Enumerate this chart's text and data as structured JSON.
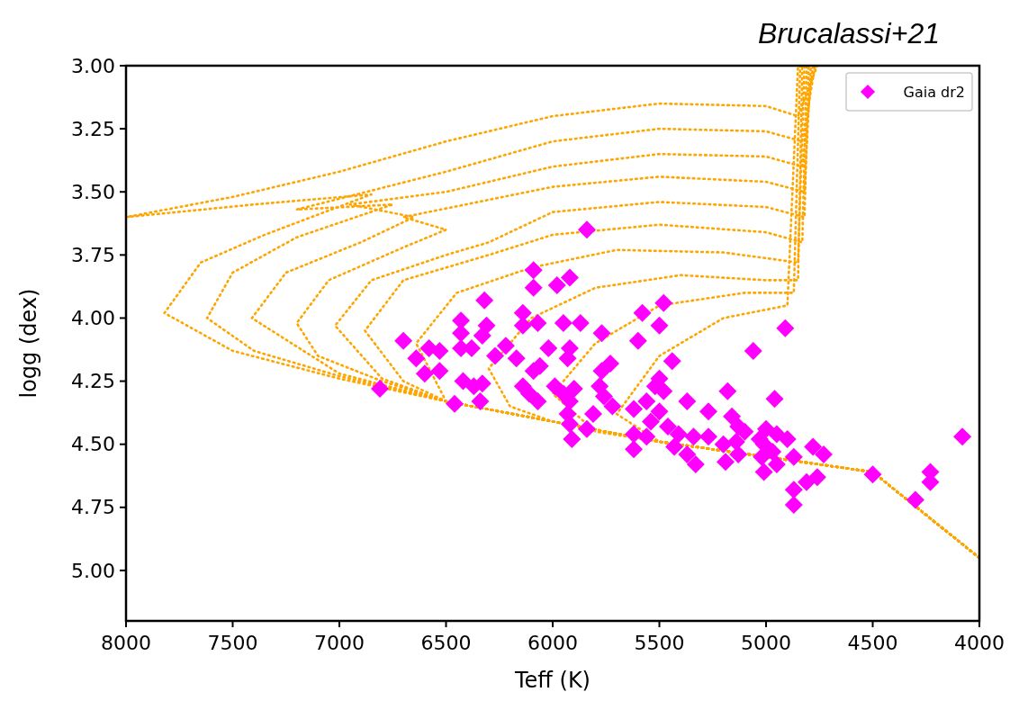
{
  "chart_data": {
    "type": "scatter",
    "title": "Brucalassi+21",
    "xlabel": "Teff (K)",
    "ylabel": "logg (dex)",
    "xlim": [
      8000,
      4000
    ],
    "xticks": [
      8000,
      7500,
      7000,
      6500,
      6000,
      5500,
      5000,
      4500,
      4000
    ],
    "ylim": [
      5.2,
      3.0
    ],
    "yticks": [
      {
        "value": 3,
        "label": "3.00"
      },
      {
        "value": 3.25,
        "label": "3.25"
      },
      {
        "value": 3.5,
        "label": "3.50"
      },
      {
        "value": 3.75,
        "label": "3.75"
      },
      {
        "value": 4,
        "label": "4.00"
      },
      {
        "value": 4.25,
        "label": "4.25"
      },
      {
        "value": 4.5,
        "label": "4.50"
      },
      {
        "value": 4.75,
        "label": "4.75"
      },
      {
        "value": 5,
        "label": "5.00"
      }
    ],
    "legend": "top right",
    "series": [
      {
        "type": "line",
        "color": "#ffa500",
        "line_style": "dotted",
        "x": [
          4000,
          4500,
          4750,
          5500,
          6000,
          6500,
          7000,
          7500,
          7820,
          7650,
          7350,
          6850,
          7400,
          8000,
          7500,
          7000,
          6500,
          6000,
          5500,
          5000,
          4850,
          4760
        ],
        "values": [
          4.95,
          4.61,
          4.58,
          4.49,
          4.41,
          4.33,
          4.24,
          4.13,
          3.98,
          3.78,
          3.67,
          3.51,
          3.55,
          3.6,
          3.52,
          3.42,
          3.3,
          3.2,
          3.15,
          3.16,
          3.2,
          3.0
        ]
      },
      {
        "type": "line",
        "color": "#ffa500",
        "line_style": "dotted",
        "x": [
          4000,
          4500,
          4750,
          5500,
          6000,
          6500,
          7000,
          7400,
          7620,
          7500,
          7200,
          6750,
          7200,
          6500,
          6000,
          5500,
          5000,
          4830,
          4770
        ],
        "values": [
          4.95,
          4.61,
          4.58,
          4.49,
          4.41,
          4.33,
          4.23,
          4.13,
          4.0,
          3.82,
          3.68,
          3.55,
          3.57,
          3.42,
          3.3,
          3.25,
          3.26,
          3.3,
          3.0
        ]
      },
      {
        "type": "line",
        "color": "#ffa500",
        "line_style": "dotted",
        "x": [
          4000,
          4500,
          4750,
          5500,
          6000,
          6500,
          7000,
          7410,
          7250,
          6900,
          6650,
          6950,
          6500,
          6000,
          5500,
          5000,
          4830,
          4780
        ],
        "values": [
          4.95,
          4.61,
          4.58,
          4.49,
          4.41,
          4.33,
          4.22,
          4.0,
          3.82,
          3.7,
          3.6,
          3.55,
          3.5,
          3.4,
          3.35,
          3.36,
          3.4,
          3.0
        ]
      },
      {
        "type": "line",
        "color": "#ffa500",
        "line_style": "dotted",
        "x": [
          4000,
          4500,
          4750,
          5500,
          6000,
          6500,
          6800,
          7100,
          7200,
          7050,
          6700,
          6500,
          6700,
          6000,
          5500,
          5000,
          4820,
          4790
        ],
        "values": [
          4.95,
          4.61,
          4.58,
          4.49,
          4.41,
          4.33,
          4.25,
          4.15,
          4.02,
          3.85,
          3.72,
          3.65,
          3.6,
          3.48,
          3.44,
          3.46,
          3.5,
          3.0
        ]
      },
      {
        "type": "line",
        "color": "#ffa500",
        "line_style": "dotted",
        "x": [
          4000,
          4500,
          4750,
          5500,
          6000,
          6500,
          6800,
          7020,
          6850,
          6500,
          6300,
          6000,
          5500,
          5000,
          4820,
          4800
        ],
        "values": [
          4.95,
          4.61,
          4.58,
          4.49,
          4.41,
          4.33,
          4.24,
          4.03,
          3.85,
          3.75,
          3.7,
          3.58,
          3.54,
          3.56,
          3.6,
          3.0
        ]
      },
      {
        "type": "line",
        "color": "#ffa500",
        "line_style": "dotted",
        "x": [
          4000,
          4500,
          4750,
          5500,
          6000,
          6500,
          6700,
          6880,
          6700,
          6300,
          6000,
          5500,
          5000,
          4830,
          4810
        ],
        "values": [
          4.95,
          4.61,
          4.58,
          4.49,
          4.41,
          4.33,
          4.25,
          4.05,
          3.85,
          3.75,
          3.67,
          3.63,
          3.66,
          3.7,
          3.0
        ]
      },
      {
        "type": "line",
        "color": "#ffa500",
        "line_style": "dotted",
        "x": [
          4000,
          4500,
          4750,
          5500,
          6000,
          6500,
          6640,
          6450,
          6100,
          5700,
          5200,
          4850,
          4820
        ],
        "values": [
          4.95,
          4.61,
          4.58,
          4.49,
          4.41,
          4.33,
          4.1,
          3.9,
          3.8,
          3.73,
          3.74,
          3.78,
          3.0
        ]
      },
      {
        "type": "line",
        "color": "#ffa500",
        "line_style": "dotted",
        "x": [
          4000,
          4500,
          4750,
          5500,
          6000,
          6200,
          6300,
          6100,
          5800,
          5400,
          5000,
          4850,
          4830
        ],
        "values": [
          4.95,
          4.61,
          4.58,
          4.49,
          4.41,
          4.35,
          4.2,
          4.0,
          3.88,
          3.83,
          3.85,
          3.85,
          3.0
        ]
      },
      {
        "type": "line",
        "color": "#ffa500",
        "line_style": "dotted",
        "x": [
          4000,
          4500,
          4750,
          5500,
          5800,
          6000,
          5800,
          5500,
          5100,
          4870,
          4840
        ],
        "values": [
          4.95,
          4.61,
          4.58,
          4.49,
          4.45,
          4.3,
          4.1,
          3.95,
          3.9,
          3.9,
          3.0
        ]
      },
      {
        "type": "line",
        "color": "#ffa500",
        "line_style": "dotted",
        "x": [
          4000,
          4500,
          4750,
          5500,
          5700,
          5500,
          5200,
          4900,
          4850
        ],
        "values": [
          4.95,
          4.61,
          4.58,
          4.49,
          4.38,
          4.15,
          4.0,
          3.95,
          3.0
        ]
      },
      {
        "name": "Gaia dr2",
        "color": "#ff00ff",
        "marker": "diamond",
        "x": [
          5840,
          6090,
          6090,
          5980,
          5920,
          6320,
          6430,
          6430,
          6310,
          6330,
          6700,
          6580,
          6530,
          6640,
          6430,
          6380,
          6270,
          6220,
          6170,
          6600,
          6530,
          6810,
          6460,
          6420,
          6370,
          6330,
          6340,
          6140,
          6140,
          6070,
          5950,
          5870,
          6020,
          5920,
          5930,
          5770,
          5730,
          5770,
          6090,
          6060,
          6140,
          6110,
          6070,
          5990,
          5950,
          5900,
          5920,
          5930,
          5920,
          5910,
          5840,
          5810,
          5780,
          5760,
          5720,
          5480,
          5580,
          5500,
          5600,
          5440,
          4910,
          5060,
          5500,
          5480,
          5520,
          5180,
          4960,
          5370,
          5560,
          5500,
          5270,
          5620,
          5540,
          5160,
          5460,
          5130,
          5100,
          5000,
          4950,
          4900,
          5620,
          5560,
          5410,
          5340,
          5270,
          5200,
          5140,
          5030,
          5010,
          5430,
          5620,
          5370,
          5330,
          5190,
          5130,
          5020,
          4970,
          4950,
          4870,
          4780,
          4730,
          5010,
          4810,
          4760,
          4870,
          4870,
          4500,
          4230,
          4230,
          4300,
          4080
        ],
        "values": [
          3.65,
          3.81,
          3.88,
          3.87,
          3.84,
          3.93,
          4.01,
          4.06,
          4.03,
          4.07,
          4.09,
          4.12,
          4.13,
          4.16,
          4.12,
          4.12,
          4.15,
          4.11,
          4.16,
          4.22,
          4.21,
          4.28,
          4.34,
          4.25,
          4.27,
          4.26,
          4.33,
          3.98,
          4.03,
          4.02,
          4.02,
          4.02,
          4.12,
          4.12,
          4.16,
          4.06,
          4.18,
          4.21,
          4.21,
          4.19,
          4.27,
          4.3,
          4.33,
          4.27,
          4.3,
          4.28,
          4.33,
          4.38,
          4.42,
          4.48,
          4.44,
          4.38,
          4.27,
          4.31,
          4.35,
          3.94,
          3.98,
          4.03,
          4.09,
          4.17,
          4.04,
          4.13,
          4.24,
          4.29,
          4.27,
          4.29,
          4.32,
          4.33,
          4.33,
          4.37,
          4.37,
          4.36,
          4.41,
          4.39,
          4.43,
          4.43,
          4.45,
          4.44,
          4.46,
          4.48,
          4.46,
          4.47,
          4.46,
          4.47,
          4.47,
          4.5,
          4.49,
          4.48,
          4.5,
          4.51,
          4.52,
          4.54,
          4.58,
          4.57,
          4.54,
          4.55,
          4.53,
          4.58,
          4.55,
          4.51,
          4.54,
          4.61,
          4.65,
          4.63,
          4.68,
          4.74,
          4.62,
          4.61,
          4.65,
          4.72,
          4.47
        ]
      }
    ]
  }
}
